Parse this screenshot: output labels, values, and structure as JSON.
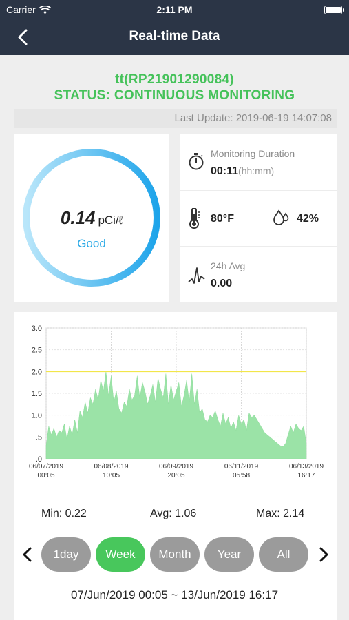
{
  "status_bar": {
    "carrier": "Carrier",
    "time": "2:11 PM"
  },
  "nav": {
    "title": "Real-time Data",
    "back_icon": "chevron-left-icon"
  },
  "device": {
    "name": "tt(RP21901290084)",
    "status": "STATUS: CONTINUOUS MONITORING"
  },
  "last_update": "Last Update: 2019-06-19 14:07:08",
  "gauge": {
    "value": "0.14",
    "unit": "pCi/ℓ",
    "level": "Good",
    "ring_color": "#29a9e6"
  },
  "info": {
    "duration_label": "Monitoring Duration",
    "duration_value": "00:11",
    "duration_suffix": "(hh:mm)",
    "temperature": "80°F",
    "humidity": "42%",
    "avg_label": "24h Avg",
    "avg_value": "0.00"
  },
  "chart_data": {
    "type": "area",
    "yticks": [
      "3.0",
      "2.5",
      "2.0",
      "1.5",
      "1.0",
      ".5",
      ".0"
    ],
    "ylim": [
      0,
      3.0
    ],
    "threshold": 2.0,
    "threshold_color": "#f2e64a",
    "fill_color": "#9be3a7",
    "xticks": [
      {
        "date": "06/07/2019",
        "time": "00:05"
      },
      {
        "date": "06/08/2019",
        "time": "10:05"
      },
      {
        "date": "06/09/2019",
        "time": "20:05"
      },
      {
        "date": "06/11/2019",
        "time": "05:58"
      },
      {
        "date": "06/13/2019",
        "time": "16:17"
      }
    ],
    "x": [
      0.0,
      0.01,
      0.02,
      0.03,
      0.04,
      0.05,
      0.06,
      0.07,
      0.08,
      0.09,
      0.1,
      0.11,
      0.12,
      0.13,
      0.14,
      0.15,
      0.16,
      0.17,
      0.18,
      0.19,
      0.2,
      0.21,
      0.22,
      0.23,
      0.24,
      0.25,
      0.26,
      0.27,
      0.28,
      0.29,
      0.3,
      0.31,
      0.32,
      0.33,
      0.34,
      0.35,
      0.36,
      0.37,
      0.38,
      0.39,
      0.4,
      0.41,
      0.42,
      0.43,
      0.44,
      0.45,
      0.46,
      0.47,
      0.48,
      0.49,
      0.5,
      0.51,
      0.52,
      0.53,
      0.54,
      0.55,
      0.56,
      0.57,
      0.58,
      0.59,
      0.6,
      0.61,
      0.62,
      0.63,
      0.64,
      0.65,
      0.66,
      0.67,
      0.68,
      0.69,
      0.7,
      0.71,
      0.72,
      0.73,
      0.74,
      0.75,
      0.76,
      0.77,
      0.78,
      0.79,
      0.8,
      0.81,
      0.82,
      0.83,
      0.84,
      0.85,
      0.86,
      0.87,
      0.88,
      0.89,
      0.9,
      0.91,
      0.92,
      0.93,
      0.94,
      0.95,
      0.96,
      0.97,
      0.98,
      0.99,
      1.0
    ],
    "values": [
      0.3,
      0.75,
      0.55,
      0.7,
      0.5,
      0.65,
      0.6,
      0.8,
      0.45,
      0.75,
      0.55,
      0.9,
      0.6,
      1.1,
      0.95,
      1.3,
      1.05,
      1.4,
      1.25,
      1.6,
      1.35,
      1.8,
      1.55,
      2.0,
      1.45,
      1.9,
      1.3,
      1.55,
      1.15,
      1.05,
      1.3,
      1.2,
      1.6,
      1.35,
      1.45,
      1.9,
      1.4,
      1.75,
      1.55,
      1.25,
      1.45,
      1.7,
      1.3,
      1.85,
      1.6,
      1.4,
      1.95,
      1.25,
      1.7,
      1.35,
      1.55,
      1.75,
      1.2,
      1.45,
      1.8,
      1.3,
      1.95,
      1.25,
      1.6,
      1.05,
      1.15,
      0.9,
      0.85,
      1.0,
      0.95,
      1.1,
      0.9,
      0.75,
      1.05,
      0.8,
      0.95,
      0.7,
      0.85,
      0.65,
      1.0,
      0.8,
      0.9,
      0.65,
      1.05,
      0.95,
      1.0,
      0.9,
      0.8,
      0.7,
      0.6,
      0.55,
      0.5,
      0.45,
      0.4,
      0.35,
      0.3,
      0.28,
      0.35,
      0.55,
      0.75,
      0.6,
      0.8,
      0.7,
      0.65,
      0.75,
      0.35
    ]
  },
  "stats": {
    "min": "Min: 0.22",
    "avg": "Avg: 1.06",
    "max": "Max: 2.14"
  },
  "periods": [
    {
      "label": "1day",
      "active": false
    },
    {
      "label": "Week",
      "active": true
    },
    {
      "label": "Month",
      "active": false
    },
    {
      "label": "Year",
      "active": false
    },
    {
      "label": "All",
      "active": false
    }
  ],
  "range": "07/Jun/2019 00:05 ~ 13/Jun/2019 16:17",
  "colors": {
    "nav_bg": "#2b3546",
    "status_green": "#45c25a",
    "active_pill": "#48c75c",
    "inactive_pill": "#9b9b9b"
  }
}
